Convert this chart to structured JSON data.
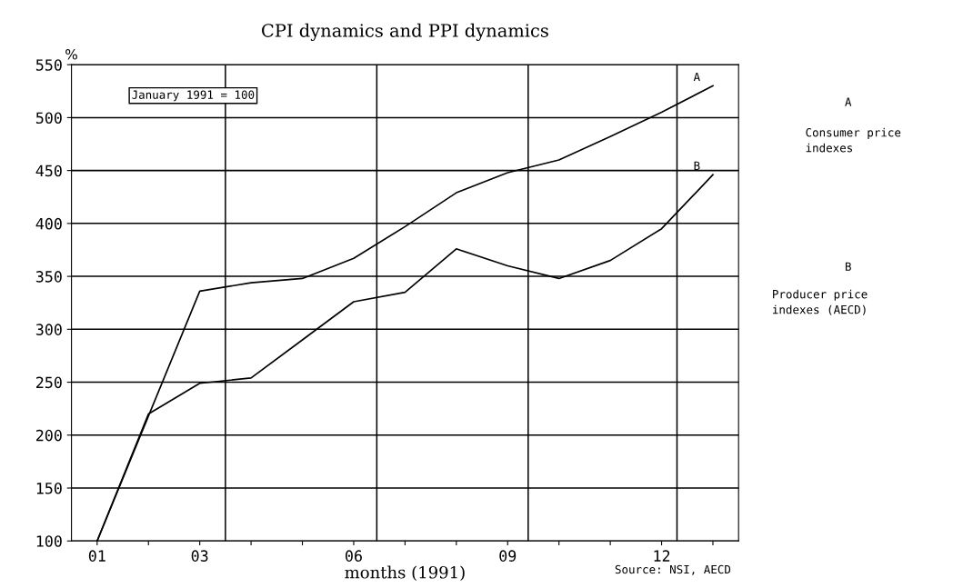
{
  "chart_data": {
    "type": "line",
    "title": "CPI dynamics and PPI dynamics",
    "xlabel": "months (1991)",
    "ylabel": "%",
    "x": [
      1,
      2,
      3,
      4,
      5,
      6,
      7,
      8,
      9,
      10,
      11,
      12,
      13
    ],
    "series": [
      {
        "name": "A",
        "color": "#000000",
        "values": [
          100,
          null,
          336,
          344,
          348,
          367,
          397,
          429,
          448,
          460,
          482,
          505,
          530
        ]
      },
      {
        "name": "B",
        "color": "#000000",
        "values": [
          100,
          220,
          249,
          254,
          290,
          326,
          335,
          376,
          360,
          348,
          365,
          395,
          446
        ]
      }
    ],
    "xlim": [
      0.5,
      13.5
    ],
    "ylim": [
      100,
      550
    ],
    "xticks": [
      {
        "value": 1,
        "label": "01"
      },
      {
        "value": 2,
        "label": null
      },
      {
        "value": 3,
        "label": "03"
      },
      {
        "value": 4,
        "label": null
      },
      {
        "value": 5,
        "label": null
      },
      {
        "value": 6,
        "label": "06"
      },
      {
        "value": 7,
        "label": null
      },
      {
        "value": 8,
        "label": null
      },
      {
        "value": 9,
        "label": "09"
      },
      {
        "value": 10,
        "label": null
      },
      {
        "value": 11,
        "label": null
      },
      {
        "value": 12,
        "label": "12"
      },
      {
        "value": 13,
        "label": null
      }
    ],
    "yticks": [
      100,
      150,
      200,
      250,
      300,
      350,
      400,
      450,
      500,
      550
    ],
    "grid": "y",
    "marker": "none",
    "line_style": "solid",
    "legend": false,
    "ref_lines": [
      {
        "axis": "x",
        "value": 3.5,
        "label": null
      },
      {
        "axis": "x",
        "value": 6.45,
        "label": null
      },
      {
        "axis": "x",
        "value": 9.4,
        "label": null
      },
      {
        "axis": "x",
        "value": 12.3,
        "label": null
      }
    ],
    "annotations": [
      "January 1991 = 100",
      "A",
      "Consumer price\nindexes",
      "B",
      "Producer price\nindexes (AECD)",
      "Source: NSI, AECD"
    ]
  }
}
